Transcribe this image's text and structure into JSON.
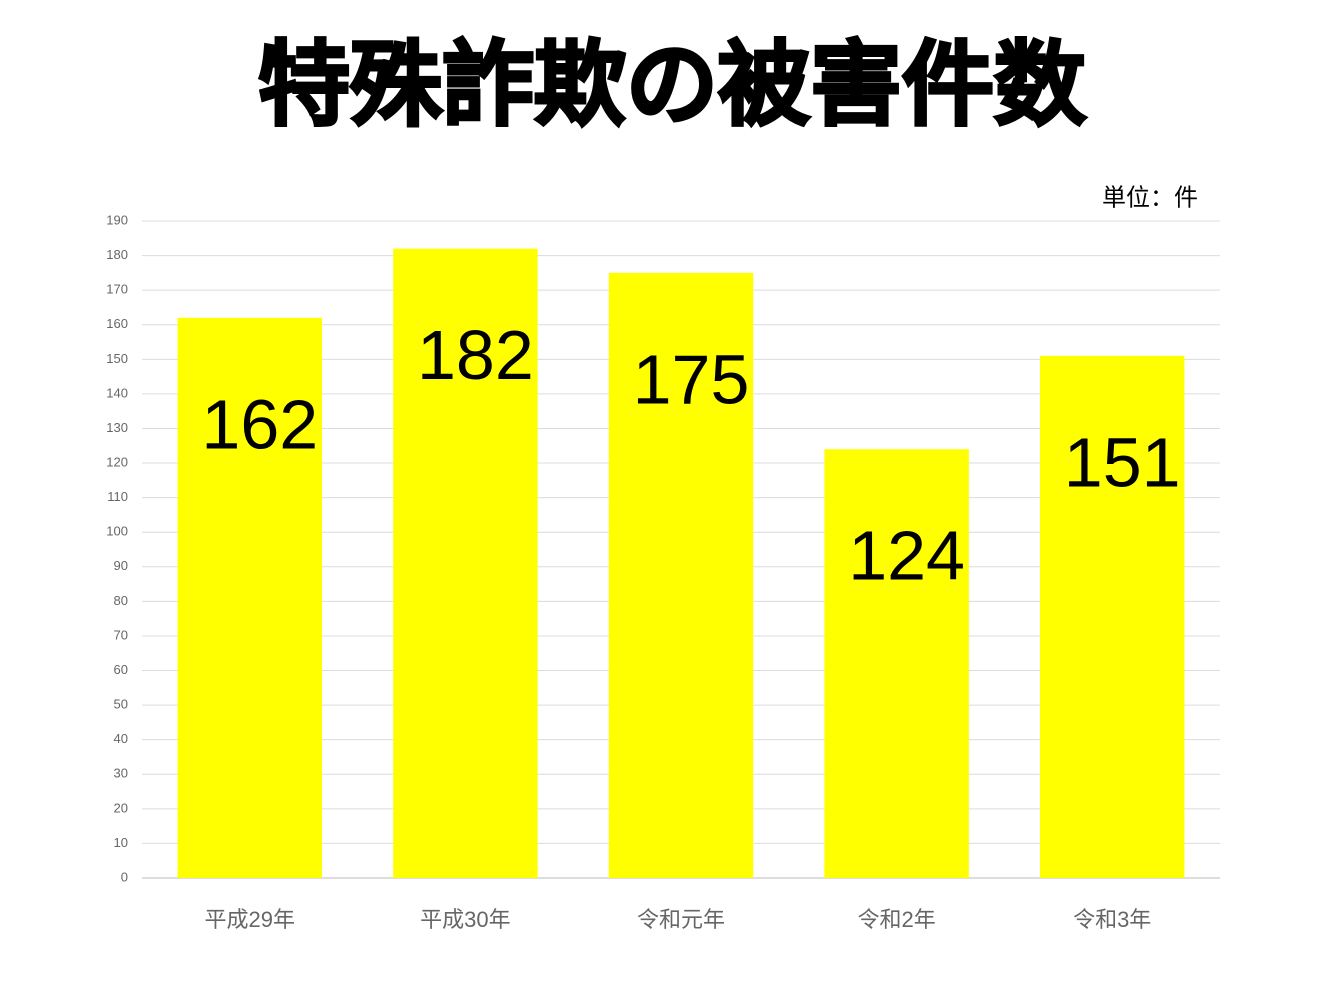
{
  "chart_data": {
    "type": "bar",
    "title": "特殊詐欺の被害件数",
    "unit_label": "単位：件",
    "categories": [
      "平成29年",
      "平成30年",
      "令和元年",
      "令和2年",
      "令和3年"
    ],
    "values": [
      162,
      182,
      175,
      124,
      151
    ],
    "color": "#ffff00",
    "ylim": [
      0,
      190
    ],
    "yticks": [
      0,
      10,
      20,
      30,
      40,
      50,
      60,
      70,
      80,
      90,
      100,
      110,
      120,
      130,
      140,
      150,
      160,
      170,
      180,
      190
    ],
    "grid": true
  }
}
